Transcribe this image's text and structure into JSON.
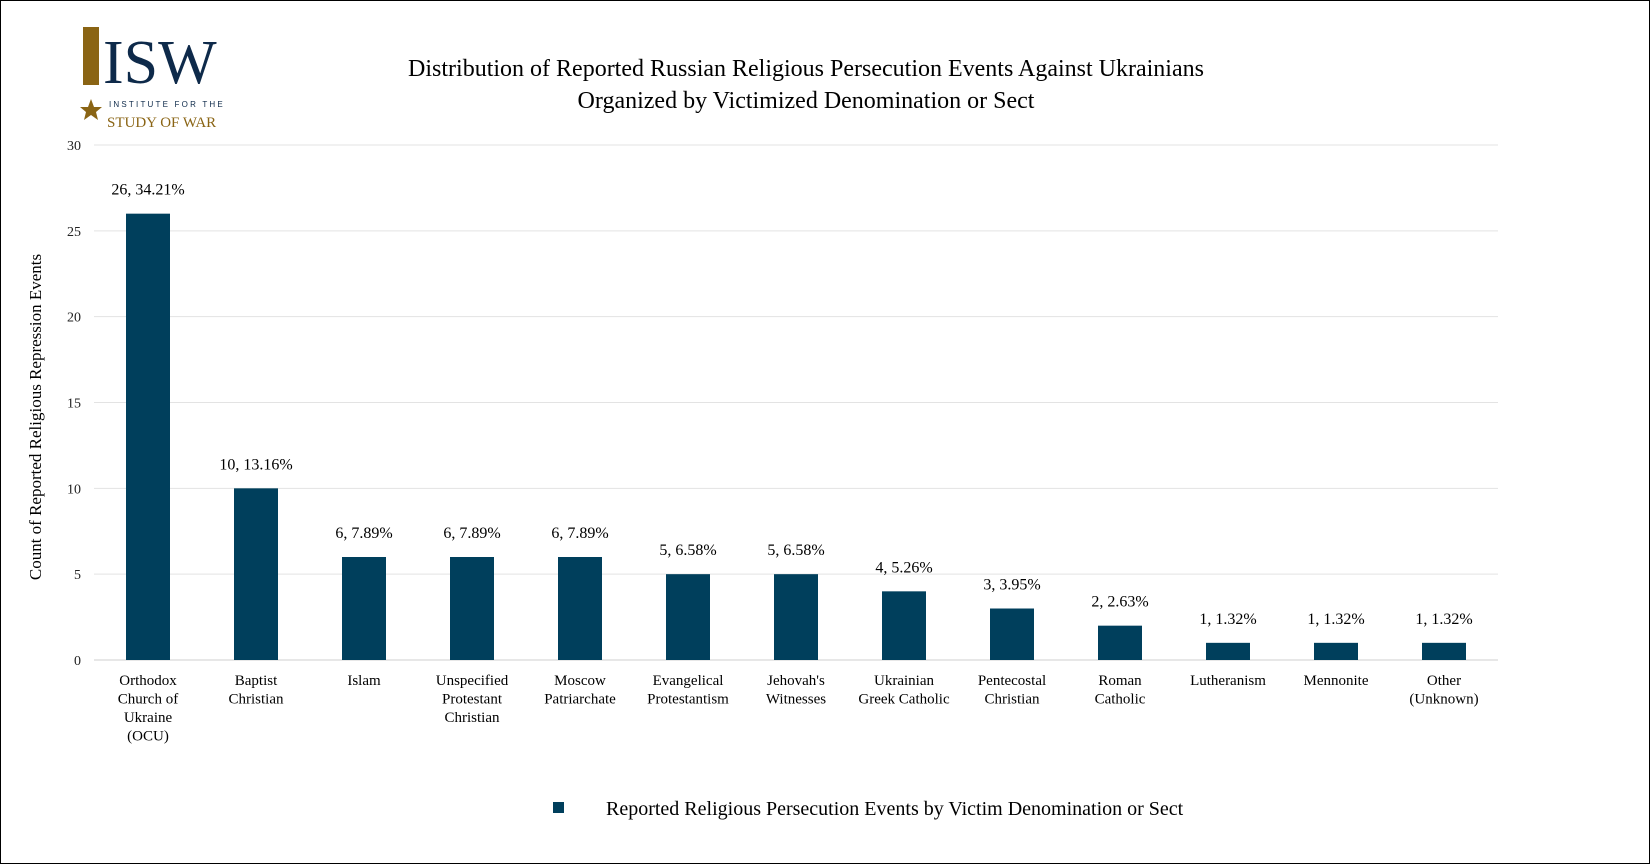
{
  "logo": {
    "letters": "ISW",
    "line1": "INSTITUTE FOR THE",
    "line2": "STUDY OF WAR",
    "navy": "#0e2a4a",
    "gold": "#8a6414"
  },
  "chart_data": {
    "type": "bar",
    "title": "Distribution of  Reported Russian Religious Persecution Events Against Ukrainians",
    "subtitle": "Organized by Victimized Denomination or Sect",
    "ylabel": "Count of Reported Religious Repression Events",
    "xlabel": "",
    "ylim": [
      0,
      30
    ],
    "yticks": [
      0,
      5,
      10,
      15,
      20,
      25,
      30
    ],
    "grid": true,
    "legend_placement": "bottom",
    "bar_color": "#003f5c",
    "categories": [
      [
        "Orthodox",
        "Church of",
        "Ukraine",
        "(OCU)"
      ],
      [
        "Baptist",
        "Christian"
      ],
      [
        "Islam"
      ],
      [
        "Unspecified",
        "Protestant",
        "Christian"
      ],
      [
        "Moscow",
        "Patriarchate"
      ],
      [
        "Evangelical",
        "Protestantism"
      ],
      [
        "Jehovah's",
        "Witnesses"
      ],
      [
        "Ukrainian",
        "Greek Catholic"
      ],
      [
        "Pentecostal",
        "Christian"
      ],
      [
        "Roman",
        "Catholic"
      ],
      [
        "Lutheranism"
      ],
      [
        "Mennonite"
      ],
      [
        "Other",
        "(Unknown)"
      ]
    ],
    "series": [
      {
        "name": "Reported Religious Persecution Events by Victim Denomination or Sect",
        "values": [
          26,
          10,
          6,
          6,
          6,
          5,
          5,
          4,
          3,
          2,
          1,
          1,
          1
        ],
        "data_labels": [
          "26, 34.21%",
          "10, 13.16%",
          "6, 7.89%",
          "6, 7.89%",
          "6, 7.89%",
          "5, 6.58%",
          "5, 6.58%",
          "4, 5.26%",
          "3, 3.95%",
          "2, 2.63%",
          "1, 1.32%",
          "1, 1.32%",
          "1, 1.32%"
        ]
      }
    ]
  }
}
